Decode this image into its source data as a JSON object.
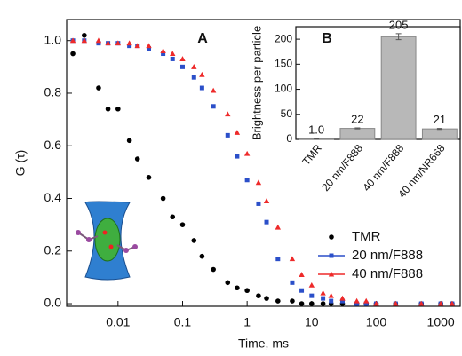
{
  "chart_data": [
    {
      "type": "scatter",
      "xscale": "log",
      "title": "A",
      "xlabel": "Time, ms",
      "ylabel": "G (τ)",
      "xlim": [
        0.0016,
        2000
      ],
      "xticks": [
        0.01,
        0.1,
        1,
        10,
        100,
        1000
      ],
      "ylim": [
        -0.01,
        1.08
      ],
      "yticks": [
        {
          "value": 0,
          "label": "0.0"
        },
        0.2,
        0.4,
        0.6,
        0.8,
        {
          "value": 1,
          "label": "1.0"
        }
      ],
      "legend": "lower right",
      "x": [
        0.002,
        0.003,
        0.005,
        0.007,
        0.01,
        0.015,
        0.02,
        0.03,
        0.05,
        0.07,
        0.1,
        0.15,
        0.2,
        0.3,
        0.5,
        0.7,
        1,
        1.5,
        2,
        3,
        5,
        7,
        10,
        15,
        20,
        30,
        50,
        70,
        100,
        200,
        500,
        1000,
        1500
      ],
      "series": [
        {
          "name": "TMR",
          "color": "#000000",
          "marker": "circle",
          "values": [
            0.95,
            1.02,
            0.82,
            0.74,
            0.74,
            0.62,
            0.55,
            0.48,
            0.4,
            0.33,
            0.3,
            0.24,
            0.18,
            0.13,
            0.08,
            0.06,
            0.05,
            0.03,
            0.02,
            0.01,
            0.01,
            0,
            0,
            0,
            0,
            0,
            0,
            0,
            0,
            0,
            0,
            0,
            0
          ]
        },
        {
          "name": "20 nm/F888",
          "color": "#2b4fc9",
          "marker": "square",
          "values": [
            1.0,
            1.0,
            0.99,
            0.99,
            0.99,
            0.98,
            0.98,
            0.97,
            0.95,
            0.93,
            0.9,
            0.86,
            0.82,
            0.75,
            0.64,
            0.56,
            0.47,
            0.38,
            0.31,
            0.17,
            0.08,
            0.05,
            0.03,
            0.02,
            0.01,
            0.01,
            0,
            0,
            0,
            0,
            0,
            0,
            0
          ]
        },
        {
          "name": "40 nm/F888",
          "color": "#ee2a2a",
          "marker": "triangle",
          "values": [
            1.0,
            1.0,
            1.0,
            0.99,
            0.99,
            0.99,
            0.98,
            0.98,
            0.96,
            0.95,
            0.93,
            0.9,
            0.87,
            0.81,
            0.72,
            0.65,
            0.57,
            0.46,
            0.39,
            0.29,
            0.17,
            0.11,
            0.07,
            0.04,
            0.03,
            0.02,
            0.01,
            0.01,
            0,
            0,
            0,
            0,
            0
          ]
        }
      ]
    },
    {
      "type": "bar",
      "title": "B",
      "ylabel": "Brightness per particle",
      "categories": [
        "TMR",
        "20 nm/F888",
        "40 nm/F888",
        "40 nm/NR668"
      ],
      "values": [
        1.0,
        22,
        205,
        21
      ],
      "value_labels": [
        "1.0",
        "22",
        "205",
        "21"
      ],
      "errors": [
        0.3,
        1,
        6,
        1
      ],
      "color": "#b8b8b8",
      "ylim": [
        0,
        225
      ],
      "yticks": [
        0,
        50,
        100,
        150,
        200
      ]
    }
  ]
}
